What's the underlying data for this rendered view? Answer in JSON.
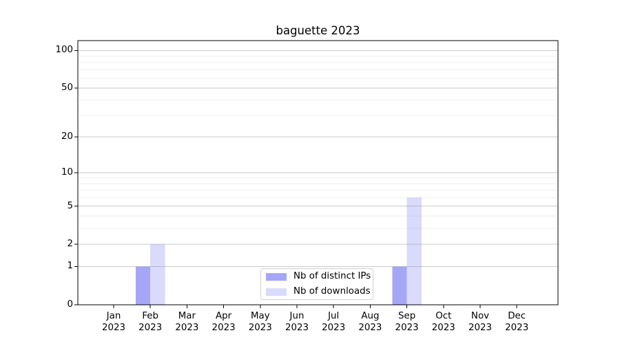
{
  "chart_data": {
    "type": "bar",
    "title": "baguette 2023",
    "categories": [
      "Jan",
      "Feb",
      "Mar",
      "Apr",
      "May",
      "Jun",
      "Jul",
      "Aug",
      "Sep",
      "Oct",
      "Nov",
      "Dec"
    ],
    "category_year": "2023",
    "series": [
      {
        "name": "Nb of distinct IPs",
        "color": "rgba(102,102,240,0.58)",
        "values": [
          0,
          1,
          0,
          0,
          0,
          0,
          0,
          0,
          1,
          0,
          0,
          0
        ]
      },
      {
        "name": "Nb of downloads",
        "color": "rgba(102,102,240,0.24)",
        "values": [
          0,
          2,
          0,
          0,
          0,
          0,
          0,
          0,
          6,
          0,
          0,
          0
        ]
      }
    ],
    "xlabel": "",
    "ylabel": "",
    "yscale": "log1p",
    "ylim": [
      0,
      120
    ],
    "yticks": [
      0,
      1,
      2,
      5,
      10,
      20,
      50,
      100
    ],
    "yticks_minor": [
      3,
      4,
      6,
      7,
      8,
      9,
      30,
      40,
      60,
      70,
      80,
      90
    ],
    "grid": "horizontal major+minor",
    "legend_position": "lower center",
    "colors": {
      "grid_major": "#c9c9c9",
      "grid_minor": "#efefef",
      "spine": "#000000",
      "background": "#ffffff"
    }
  }
}
